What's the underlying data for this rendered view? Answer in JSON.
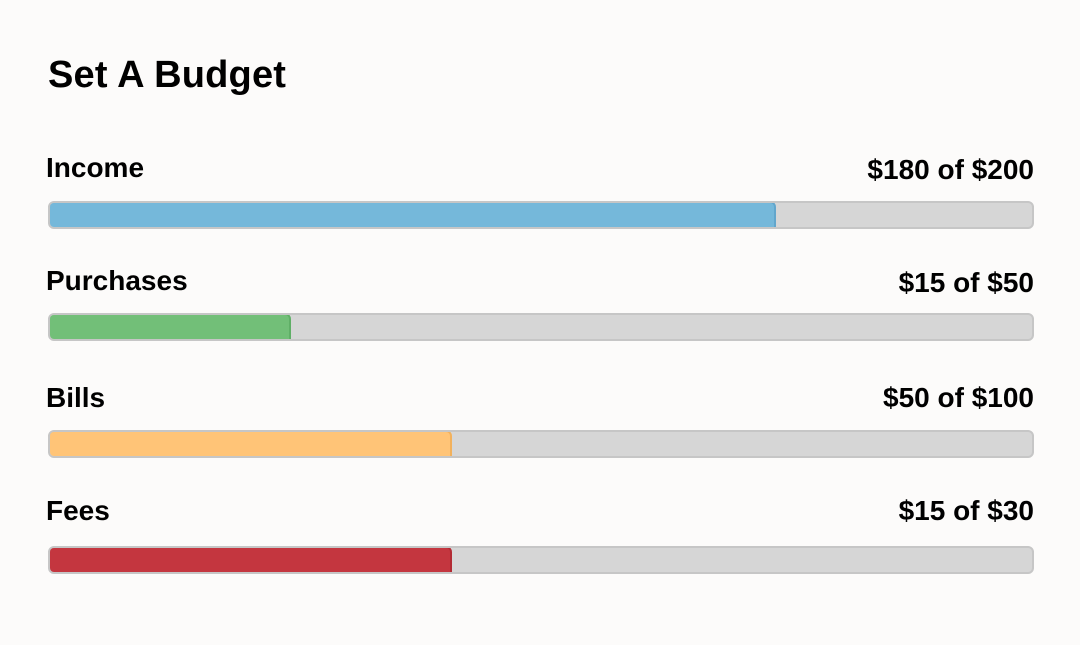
{
  "budget": {
    "title": "Set A Budget",
    "categories": [
      {
        "label": "Income",
        "amount_text": "$180 of $200",
        "spent": 180,
        "limit": 200,
        "color": "#75b8da",
        "border": "#62a6cc"
      },
      {
        "label": "Purchases",
        "amount_text": "$15 of $50",
        "spent": 15,
        "limit": 50,
        "color": "#72bf78",
        "border": "#5faf66"
      },
      {
        "label": "Bills",
        "amount_text": "$50 of $100",
        "spent": 50,
        "limit": 100,
        "color": "#ffc477",
        "border": "#f2b15c"
      },
      {
        "label": "Fees",
        "amount_text": "$15 of $30",
        "spent": 15,
        "limit": 30,
        "color": "#c4363f",
        "border": "#b32b34"
      }
    ]
  }
}
